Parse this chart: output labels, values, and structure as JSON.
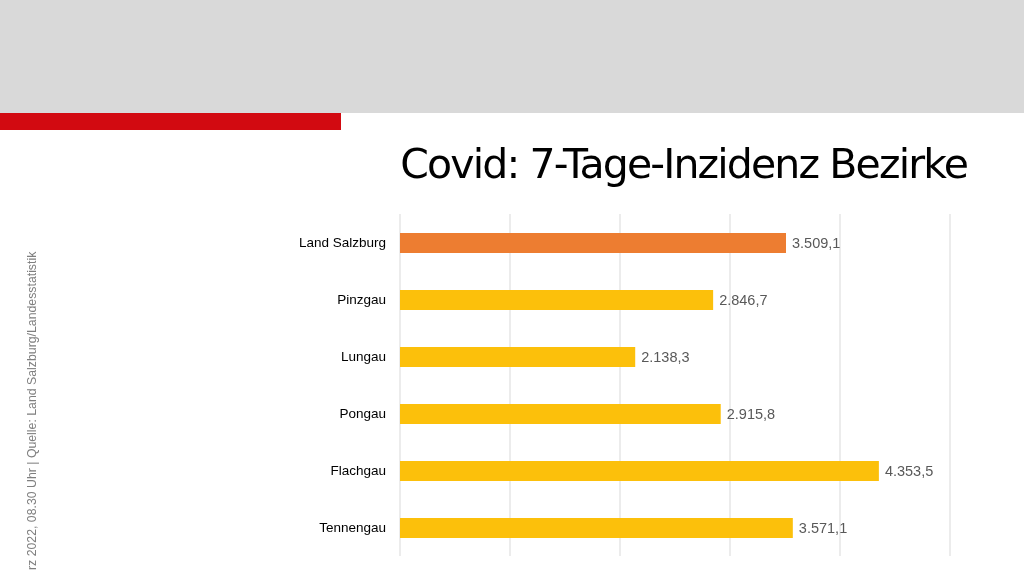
{
  "chart_data": {
    "type": "bar",
    "orientation": "horizontal",
    "title": "Covid: 7-Tage-Inzidenz Bezirke",
    "categories": [
      "Land Salzburg",
      "Pinzgau",
      "Lungau",
      "Pongau",
      "Flachgau",
      "Tennengau"
    ],
    "values": [
      3509.1,
      2846.7,
      2138.3,
      2915.8,
      4353.5,
      3571.1
    ],
    "colors": [
      "#ed7d31",
      "#fcc00b",
      "#fcc00b",
      "#fcc00b",
      "#fcc00b",
      "#fcc00b"
    ],
    "value_labels": [
      "3.509,1",
      "2.846,7",
      "2.138,3",
      "2.915,8",
      "4.353,5",
      "3.571,1"
    ],
    "xlim": [
      0,
      5000
    ],
    "grid": "x",
    "tick_labels": "y",
    "annotations": [
      "rz 2022, 08.30 Uhr | Quelle: Land Salzburg/Landesstatistik"
    ]
  }
}
